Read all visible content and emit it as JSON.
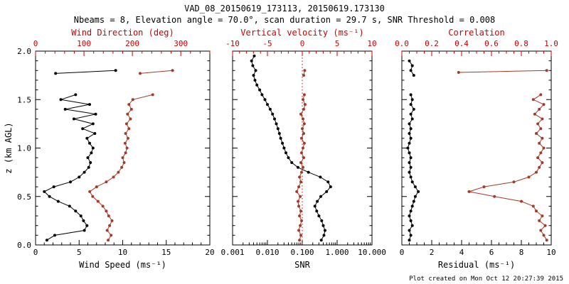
{
  "header": {
    "title": "VAD_08_20150619_173113, 20150619.173130",
    "subtitle": "Nbeams = 8, Elevation angle = 70.0°, scan duration = 29.7 s, SNR Threshold = 0.008"
  },
  "footer": {
    "created": "Plot created on Mon Oct 12 20:27:39 2015"
  },
  "colors": {
    "background": "#ffffff",
    "frame": "#000000",
    "axis_red": "#cc0000",
    "data_black": "#000000",
    "data_red": "#a33b28"
  },
  "y_axis": {
    "label": "z (km AGL)",
    "range": [
      0,
      2
    ],
    "tick_values": [
      0,
      0.5,
      1,
      1.5,
      2
    ],
    "tick_labels": [
      "0.0",
      "0.5",
      "1.0",
      "1.5",
      "2.0"
    ],
    "minor_step": 0.1
  },
  "chart_data": [
    {
      "type": "line",
      "name": "wind-speed-direction",
      "bottom_axis": {
        "label": "Wind Speed (ms⁻¹)",
        "scale": "linear",
        "range": [
          0,
          20
        ],
        "tick_values": [
          0,
          5,
          10,
          15,
          20
        ],
        "tick_labels": [
          "0",
          "5",
          "10",
          "15",
          "20"
        ],
        "minor_step": 1,
        "color": "frame"
      },
      "top_axis": {
        "label": "Wind Direction (deg)",
        "scale": "linear",
        "range": [
          0,
          360
        ],
        "tick_values": [
          0,
          100,
          200,
          300
        ],
        "tick_labels": [
          "0",
          "100",
          "200",
          "300"
        ],
        "minor_step": 20,
        "color": "axis_red"
      },
      "series": [
        {
          "name": "wind-speed",
          "axis": "bottom",
          "color": "data_black",
          "z": [
            0.05,
            0.1,
            0.15,
            0.2,
            0.25,
            0.3,
            0.35,
            0.4,
            0.45,
            0.5,
            0.55,
            0.6,
            0.65,
            0.7,
            0.75,
            0.8,
            0.85,
            0.9,
            0.95,
            1.0,
            1.05,
            1.1,
            1.15,
            1.2,
            1.25,
            1.3,
            1.35,
            1.4,
            1.45,
            1.5,
            1.55,
            1.65,
            1.77,
            1.8
          ],
          "values": [
            1.3,
            2.2,
            5.6,
            5.9,
            5.5,
            5.2,
            4.6,
            3.9,
            2.6,
            1.6,
            1.0,
            2.1,
            4.0,
            5.0,
            5.6,
            6.1,
            6.3,
            6.0,
            6.4,
            6.6,
            6.2,
            5.9,
            6.8,
            5.4,
            6.6,
            4.4,
            6.9,
            3.4,
            6.2,
            2.9,
            4.6,
            null,
            2.3,
            9.2
          ]
        },
        {
          "name": "wind-direction",
          "axis": "top",
          "color": "data_red",
          "z": [
            0.05,
            0.1,
            0.15,
            0.2,
            0.25,
            0.3,
            0.35,
            0.4,
            0.45,
            0.5,
            0.55,
            0.6,
            0.65,
            0.7,
            0.75,
            0.8,
            0.85,
            0.9,
            0.95,
            1.0,
            1.05,
            1.1,
            1.15,
            1.2,
            1.25,
            1.3,
            1.35,
            1.4,
            1.45,
            1.5,
            1.55,
            1.65,
            1.77,
            1.8
          ],
          "values": [
            150,
            156,
            148,
            153,
            158,
            151,
            146,
            139,
            129,
            118,
            112,
            126,
            146,
            161,
            171,
            178,
            183,
            180,
            186,
            189,
            185,
            191,
            186,
            193,
            188,
            196,
            190,
            198,
            193,
            201,
            242,
            null,
            216,
            283
          ]
        }
      ]
    },
    {
      "type": "line",
      "name": "snr-vertical-velocity",
      "ref_line": {
        "axis": "top",
        "value": 0
      },
      "bottom_axis": {
        "label": "SNR",
        "scale": "log",
        "range": [
          0.001,
          10
        ],
        "tick_values": [
          0.001,
          0.01,
          0.1,
          1,
          10
        ],
        "tick_labels": [
          "0.001",
          "0.010",
          "0.100",
          "1.000",
          "10.000"
        ],
        "color": "frame"
      },
      "top_axis": {
        "label": "Vertical velocity (ms⁻¹)",
        "scale": "linear",
        "range": [
          -10,
          10
        ],
        "tick_values": [
          -10,
          -5,
          0,
          5,
          10
        ],
        "tick_labels": [
          "-10",
          "-5",
          "0",
          "5",
          "10"
        ],
        "minor_step": 1,
        "color": "axis_red"
      },
      "series": [
        {
          "name": "snr",
          "axis": "bottom",
          "color": "data_black",
          "z": [
            0.05,
            0.1,
            0.15,
            0.2,
            0.25,
            0.3,
            0.35,
            0.4,
            0.45,
            0.5,
            0.55,
            0.6,
            0.65,
            0.7,
            0.75,
            0.8,
            0.85,
            0.9,
            0.95,
            1.0,
            1.05,
            1.1,
            1.15,
            1.2,
            1.25,
            1.3,
            1.35,
            1.4,
            1.45,
            1.5,
            1.55,
            1.6,
            1.65,
            1.7,
            1.75,
            1.8,
            1.85,
            1.9,
            1.95
          ],
          "values": [
            0.35,
            0.42,
            0.45,
            0.4,
            0.36,
            0.3,
            0.26,
            0.23,
            0.27,
            0.34,
            0.5,
            0.65,
            0.55,
            0.33,
            0.15,
            0.075,
            0.05,
            0.04,
            0.034,
            0.03,
            0.027,
            0.024,
            0.022,
            0.02,
            0.018,
            0.016,
            0.014,
            0.012,
            0.01,
            0.0085,
            0.007,
            0.006,
            0.005,
            0.0044,
            0.004,
            0.0046,
            0.0038,
            0.0035,
            0.0042
          ]
        },
        {
          "name": "vertical-velocity",
          "axis": "top",
          "color": "data_red",
          "z": [
            0.05,
            0.1,
            0.15,
            0.2,
            0.25,
            0.3,
            0.35,
            0.4,
            0.45,
            0.5,
            0.55,
            0.6,
            0.65,
            0.7,
            0.75,
            0.8,
            0.85,
            0.9,
            0.95,
            1.0,
            1.05,
            1.1,
            1.15,
            1.2,
            1.25,
            1.3,
            1.35,
            1.4,
            1.45,
            1.5,
            1.55,
            1.65,
            1.75,
            1.8
          ],
          "values": [
            -0.4,
            -0.2,
            -0.5,
            -0.3,
            -0.1,
            -0.4,
            -0.2,
            -0.5,
            -0.6,
            -0.3,
            -0.8,
            -0.5,
            -0.2,
            -0.4,
            -0.1,
            0.1,
            -0.2,
            0.2,
            -0.1,
            0.1,
            0.3,
            -0.1,
            0.2,
            0.0,
            0.3,
            0.1,
            -0.2,
            0.2,
            0.4,
            0.1,
            0.3,
            null,
            0.2,
            0.35
          ]
        }
      ]
    },
    {
      "type": "line",
      "name": "residual-correlation",
      "bottom_axis": {
        "label": "Residual (ms⁻¹)",
        "scale": "linear",
        "range": [
          0,
          10
        ],
        "tick_values": [
          0,
          2,
          4,
          6,
          8,
          10
        ],
        "tick_labels": [
          "0",
          "2",
          "4",
          "6",
          "8",
          "10"
        ],
        "minor_step": 0.5,
        "color": "frame"
      },
      "top_axis": {
        "label": "Correlation",
        "scale": "linear",
        "range": [
          0,
          1
        ],
        "tick_values": [
          0,
          0.2,
          0.4,
          0.6,
          0.8,
          1.0
        ],
        "tick_labels": [
          "0.0",
          "0.2",
          "0.4",
          "0.6",
          "0.8",
          "1.0"
        ],
        "minor_step": 0.05,
        "color": "axis_red"
      },
      "series": [
        {
          "name": "residual",
          "axis": "bottom",
          "color": "data_black",
          "z": [
            0.05,
            0.1,
            0.15,
            0.2,
            0.25,
            0.3,
            0.35,
            0.4,
            0.45,
            0.5,
            0.55,
            0.6,
            0.65,
            0.7,
            0.75,
            0.8,
            0.85,
            0.9,
            0.95,
            1.0,
            1.05,
            1.1,
            1.15,
            1.2,
            1.25,
            1.3,
            1.35,
            1.4,
            1.45,
            1.5,
            1.55,
            1.65,
            1.75,
            1.8,
            1.85,
            1.9
          ],
          "values": [
            0.5,
            0.6,
            0.5,
            0.7,
            0.6,
            0.5,
            0.6,
            0.7,
            0.8,
            0.9,
            1.1,
            0.9,
            0.7,
            0.6,
            0.5,
            0.6,
            0.5,
            0.6,
            0.5,
            0.4,
            0.5,
            0.6,
            0.5,
            0.6,
            0.5,
            0.7,
            0.6,
            0.8,
            0.6,
            0.7,
            0.6,
            null,
            0.8,
            0.6,
            0.7,
            0.5
          ]
        },
        {
          "name": "correlation",
          "axis": "top",
          "color": "data_red",
          "z": [
            0.05,
            0.1,
            0.15,
            0.2,
            0.25,
            0.3,
            0.35,
            0.4,
            0.45,
            0.5,
            0.55,
            0.6,
            0.65,
            0.7,
            0.75,
            0.8,
            0.85,
            0.9,
            0.95,
            1.0,
            1.05,
            1.1,
            1.15,
            1.2,
            1.25,
            1.3,
            1.35,
            1.4,
            1.45,
            1.5,
            1.55,
            1.65,
            1.78,
            1.8
          ],
          "values": [
            0.97,
            0.95,
            0.93,
            0.96,
            0.92,
            0.94,
            0.9,
            0.88,
            0.8,
            0.62,
            0.45,
            0.55,
            0.75,
            0.85,
            0.9,
            0.92,
            0.94,
            0.91,
            0.93,
            0.95,
            0.92,
            0.94,
            0.9,
            0.93,
            0.91,
            0.94,
            0.89,
            0.92,
            0.95,
            0.88,
            0.93,
            null,
            0.38,
            0.97
          ]
        }
      ]
    }
  ]
}
